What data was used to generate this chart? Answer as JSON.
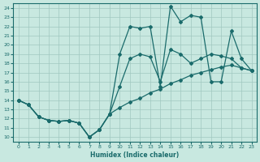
{
  "xlabel": "Humidex (Indice chaleur)",
  "xlim": [
    -0.5,
    23.5
  ],
  "ylim": [
    9.5,
    24.5
  ],
  "yticks": [
    10,
    11,
    12,
    13,
    14,
    15,
    16,
    17,
    18,
    19,
    20,
    21,
    22,
    23,
    24
  ],
  "xticks": [
    0,
    1,
    2,
    3,
    4,
    5,
    6,
    7,
    8,
    9,
    10,
    11,
    12,
    13,
    14,
    15,
    16,
    17,
    18,
    19,
    20,
    21,
    22,
    23
  ],
  "bg_color": "#c8e8e0",
  "line_color": "#1a6b6b",
  "grid_color": "#a0c8c0",
  "line1_x": [
    0,
    1,
    2,
    3,
    4,
    5,
    6,
    7,
    8,
    9,
    10,
    11,
    12,
    13,
    14,
    15,
    16,
    17,
    18,
    19,
    20,
    21,
    22,
    23
  ],
  "line1_y": [
    14.0,
    13.5,
    12.2,
    11.8,
    11.7,
    11.8,
    11.5,
    10.0,
    10.8,
    12.5,
    19.0,
    22.0,
    21.8,
    22.0,
    15.5,
    24.2,
    22.5,
    23.2,
    23.0,
    16.0,
    16.0,
    21.5,
    18.5,
    17.2
  ],
  "line2_x": [
    0,
    1,
    2,
    3,
    4,
    5,
    6,
    7,
    8,
    9,
    10,
    11,
    12,
    13,
    14,
    15,
    16,
    17,
    18,
    19,
    20,
    21,
    22,
    23
  ],
  "line2_y": [
    14.0,
    13.5,
    12.2,
    11.8,
    11.7,
    11.8,
    11.5,
    10.0,
    10.8,
    12.5,
    15.5,
    18.5,
    19.0,
    18.7,
    16.0,
    19.5,
    19.0,
    18.0,
    18.5,
    19.0,
    18.8,
    18.5,
    17.5,
    17.2
  ],
  "line3_x": [
    0,
    1,
    2,
    3,
    4,
    5,
    6,
    7,
    8,
    9,
    10,
    11,
    12,
    13,
    14,
    15,
    16,
    17,
    18,
    19,
    20,
    21,
    22,
    23
  ],
  "line3_y": [
    14.0,
    13.5,
    12.2,
    11.8,
    11.7,
    11.8,
    11.5,
    10.0,
    10.8,
    12.5,
    13.2,
    13.8,
    14.2,
    14.8,
    15.2,
    15.8,
    16.2,
    16.7,
    17.0,
    17.3,
    17.6,
    17.8,
    17.5,
    17.2
  ]
}
